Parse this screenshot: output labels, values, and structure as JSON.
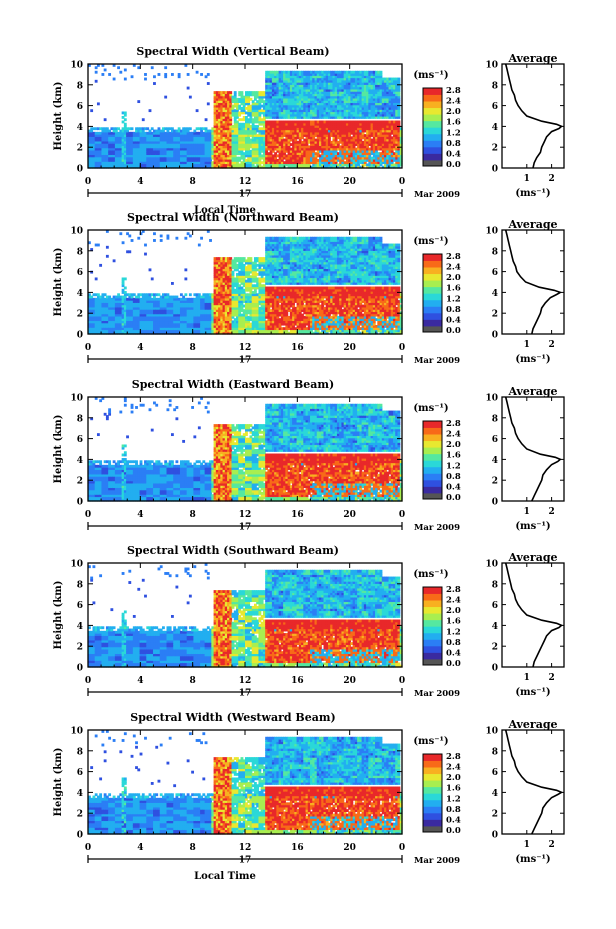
{
  "chart_data": [
    {
      "type": "heatmap",
      "title": "Spectral Width (Vertical Beam)",
      "xlabel": "Local Time",
      "ylabel": "Height (km)",
      "xticks": [
        "0",
        "4",
        "8",
        "12",
        "16",
        "20",
        "0"
      ],
      "yticks": [
        "0",
        "2",
        "4",
        "6",
        "8",
        "10"
      ],
      "xlim": [
        0,
        24
      ],
      "ylim": [
        0,
        10
      ],
      "date_day": "17",
      "date_month": "Mar 2009",
      "colorbar": {
        "unit": "(ms⁻¹)",
        "ticks": [
          "0.0",
          "0.4",
          "0.8",
          "1.2",
          "1.6",
          "2.0",
          "2.4",
          "2.8"
        ],
        "range": [
          0,
          2.8
        ]
      },
      "profile": {
        "title": "Average",
        "xlabel": "(ms⁻¹)",
        "xticks": [
          "1",
          "2"
        ],
        "xlim": [
          0,
          2.5
        ],
        "yticks": [
          "0",
          "2",
          "4",
          "6",
          "8",
          "10"
        ],
        "height": [
          0,
          0.5,
          1,
          1.5,
          2,
          2.5,
          3,
          3.5,
          3.8,
          4,
          4.2,
          4.5,
          5,
          5.5,
          6,
          6.5,
          7,
          7.5,
          8,
          8.5,
          9,
          9.5,
          10
        ],
        "width": [
          1.25,
          1.3,
          1.4,
          1.55,
          1.6,
          1.7,
          1.8,
          2.0,
          2.3,
          2.4,
          2.2,
          1.6,
          1.0,
          0.8,
          0.65,
          0.55,
          0.5,
          0.4,
          0.35,
          0.3,
          0.25,
          0.2,
          0.15
        ]
      }
    },
    {
      "type": "heatmap",
      "title": "Spectral Width (Northward Beam)",
      "xlabel": "",
      "ylabel": "Height (km)",
      "xticks": [
        "0",
        "4",
        "8",
        "12",
        "16",
        "20",
        "0"
      ],
      "yticks": [
        "0",
        "2",
        "4",
        "6",
        "8",
        "10"
      ],
      "xlim": [
        0,
        24
      ],
      "ylim": [
        0,
        10
      ],
      "date_day": "17",
      "date_month": "Mar 2009",
      "colorbar": {
        "unit": "(ms⁻¹)",
        "ticks": [
          "0.0",
          "0.4",
          "0.8",
          "1.2",
          "1.6",
          "2.0",
          "2.4",
          "2.8"
        ],
        "range": [
          0,
          2.8
        ]
      },
      "profile": {
        "title": "Average",
        "xlabel": "(ms⁻¹)",
        "xticks": [
          "1",
          "2"
        ],
        "xlim": [
          0,
          2.5
        ],
        "yticks": [
          "0",
          "2",
          "4",
          "6",
          "8",
          "10"
        ],
        "height": [
          0,
          0.5,
          1,
          1.5,
          2,
          2.5,
          3,
          3.5,
          3.8,
          4,
          4.2,
          4.5,
          5,
          5.5,
          6,
          6.5,
          7,
          7.5,
          8,
          8.5,
          9,
          9.5,
          10
        ],
        "width": [
          1.2,
          1.25,
          1.35,
          1.45,
          1.55,
          1.6,
          1.75,
          1.95,
          2.2,
          2.35,
          2.1,
          1.5,
          0.95,
          0.75,
          0.6,
          0.55,
          0.45,
          0.4,
          0.35,
          0.3,
          0.25,
          0.2,
          0.15
        ]
      }
    },
    {
      "type": "heatmap",
      "title": "Spectral Width (Eastward Beam)",
      "xlabel": "",
      "ylabel": "Height (km)",
      "xticks": [
        "0",
        "4",
        "8",
        "12",
        "16",
        "20",
        "0"
      ],
      "yticks": [
        "0",
        "2",
        "4",
        "6",
        "8",
        "10"
      ],
      "xlim": [
        0,
        24
      ],
      "ylim": [
        0,
        10
      ],
      "date_day": "17",
      "date_month": "Mar 2009",
      "colorbar": {
        "unit": "(ms⁻¹)",
        "ticks": [
          "0.0",
          "0.4",
          "0.8",
          "1.2",
          "1.6",
          "2.0",
          "2.4",
          "2.8"
        ],
        "range": [
          0,
          2.8
        ]
      },
      "profile": {
        "title": "Average",
        "xlabel": "(ms⁻¹)",
        "xticks": [
          "1",
          "2"
        ],
        "xlim": [
          0,
          2.5
        ],
        "yticks": [
          "0",
          "2",
          "4",
          "6",
          "8",
          "10"
        ],
        "height": [
          0,
          0.5,
          1,
          1.5,
          2,
          2.5,
          3,
          3.5,
          3.8,
          4,
          4.2,
          4.5,
          5,
          5.5,
          6,
          6.5,
          7,
          7.5,
          8,
          8.5,
          9,
          9.5,
          10
        ],
        "width": [
          1.2,
          1.3,
          1.4,
          1.5,
          1.6,
          1.65,
          1.8,
          2.0,
          2.25,
          2.35,
          2.15,
          1.55,
          1.0,
          0.8,
          0.65,
          0.55,
          0.5,
          0.4,
          0.35,
          0.3,
          0.25,
          0.2,
          0.15
        ]
      }
    },
    {
      "type": "heatmap",
      "title": "Spectral Width (Southward Beam)",
      "xlabel": "",
      "ylabel": "Height (km)",
      "xticks": [
        "0",
        "4",
        "8",
        "12",
        "16",
        "20",
        "0"
      ],
      "yticks": [
        "0",
        "2",
        "4",
        "6",
        "8",
        "10"
      ],
      "xlim": [
        0,
        24
      ],
      "ylim": [
        0,
        10
      ],
      "date_day": "17",
      "date_month": "Mar 2009",
      "colorbar": {
        "unit": "(ms⁻¹)",
        "ticks": [
          "0.0",
          "0.4",
          "0.8",
          "1.2",
          "1.6",
          "2.0",
          "2.4",
          "2.8"
        ],
        "range": [
          0,
          2.8
        ]
      },
      "profile": {
        "title": "Average",
        "xlabel": "(ms⁻¹)",
        "xticks": [
          "1",
          "2"
        ],
        "xlim": [
          0,
          2.5
        ],
        "yticks": [
          "0",
          "2",
          "4",
          "6",
          "8",
          "10"
        ],
        "height": [
          0,
          0.5,
          1,
          1.5,
          2,
          2.5,
          3,
          3.5,
          3.8,
          4,
          4.2,
          4.5,
          5,
          5.5,
          6,
          6.5,
          7,
          7.5,
          8,
          8.5,
          9,
          9.5,
          10
        ],
        "width": [
          1.25,
          1.3,
          1.4,
          1.5,
          1.6,
          1.7,
          1.8,
          2.0,
          2.3,
          2.4,
          2.2,
          1.6,
          1.0,
          0.8,
          0.65,
          0.55,
          0.5,
          0.4,
          0.35,
          0.3,
          0.25,
          0.2,
          0.15
        ]
      }
    },
    {
      "type": "heatmap",
      "title": "Spectral Width (Westward Beam)",
      "xlabel": "Local Time",
      "ylabel": "Height (km)",
      "xticks": [
        "0",
        "4",
        "8",
        "12",
        "16",
        "20",
        "0"
      ],
      "yticks": [
        "0",
        "2",
        "4",
        "6",
        "8",
        "10"
      ],
      "xlim": [
        0,
        24
      ],
      "ylim": [
        0,
        10
      ],
      "date_day": "17",
      "date_month": "Mar 2009",
      "colorbar": {
        "unit": "(ms⁻¹)",
        "ticks": [
          "0.0",
          "0.4",
          "0.8",
          "1.2",
          "1.6",
          "2.0",
          "2.4",
          "2.8"
        ],
        "range": [
          0,
          2.8
        ]
      },
      "profile": {
        "title": "Average",
        "xlabel": "(ms⁻¹)",
        "xticks": [
          "1",
          "2"
        ],
        "xlim": [
          0,
          2.5
        ],
        "yticks": [
          "0",
          "2",
          "4",
          "6",
          "8",
          "10"
        ],
        "height": [
          0,
          0.5,
          1,
          1.5,
          2,
          2.5,
          3,
          3.5,
          3.8,
          4,
          4.2,
          4.5,
          5,
          5.5,
          6,
          6.5,
          7,
          7.5,
          8,
          8.5,
          9,
          9.5,
          10
        ],
        "width": [
          1.2,
          1.3,
          1.4,
          1.5,
          1.6,
          1.65,
          1.8,
          2.0,
          2.25,
          2.4,
          2.2,
          1.6,
          1.0,
          0.8,
          0.65,
          0.55,
          0.5,
          0.4,
          0.35,
          0.3,
          0.25,
          0.2,
          0.15
        ]
      }
    }
  ],
  "colors": {
    "colormap": [
      "#3a2aa0",
      "#2f50e0",
      "#2b7ef5",
      "#22aef0",
      "#2ad8d8",
      "#55e8a0",
      "#a8ee50",
      "#e8e830",
      "#f8b020",
      "#f86a18",
      "#e8282a"
    ],
    "missing": "#ffffff",
    "bar_bottom": "#555555"
  }
}
